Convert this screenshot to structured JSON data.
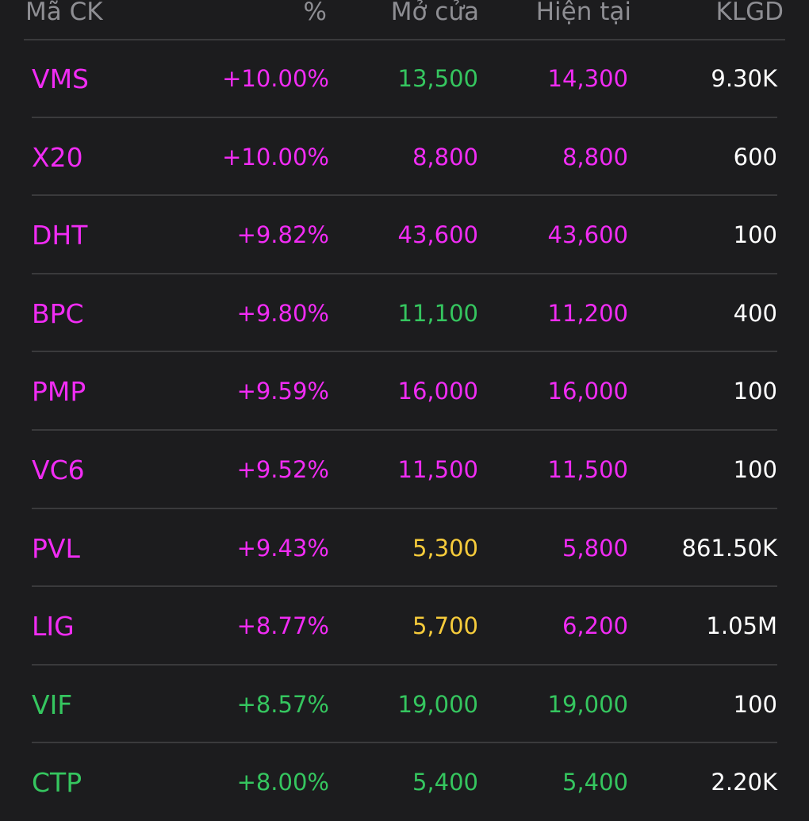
{
  "columns": {
    "symbol": "Mã CK",
    "change_pct": "%",
    "open": "Mở cửa",
    "current": "Hiện tại",
    "volume": "KLGD"
  },
  "colors": {
    "ceiling": "#f12cf4",
    "up": "#35c65f",
    "reference": "#f6cb3b",
    "neutral": "#ffffff",
    "background": "#1c1c1e",
    "header_text": "#8e8e93",
    "divider": "#3a3a3c"
  },
  "rows": [
    {
      "symbol": "VMS",
      "change_pct": "+10.00%",
      "open": "13,500",
      "current": "14,300",
      "volume": "9.30K",
      "symbol_color": "magenta",
      "pct_color": "magenta",
      "open_color": "green",
      "current_color": "magenta"
    },
    {
      "symbol": "X20",
      "change_pct": "+10.00%",
      "open": "8,800",
      "current": "8,800",
      "volume": "600",
      "symbol_color": "magenta",
      "pct_color": "magenta",
      "open_color": "magenta",
      "current_color": "magenta"
    },
    {
      "symbol": "DHT",
      "change_pct": "+9.82%",
      "open": "43,600",
      "current": "43,600",
      "volume": "100",
      "symbol_color": "magenta",
      "pct_color": "magenta",
      "open_color": "magenta",
      "current_color": "magenta"
    },
    {
      "symbol": "BPC",
      "change_pct": "+9.80%",
      "open": "11,100",
      "current": "11,200",
      "volume": "400",
      "symbol_color": "magenta",
      "pct_color": "magenta",
      "open_color": "green",
      "current_color": "magenta"
    },
    {
      "symbol": "PMP",
      "change_pct": "+9.59%",
      "open": "16,000",
      "current": "16,000",
      "volume": "100",
      "symbol_color": "magenta",
      "pct_color": "magenta",
      "open_color": "magenta",
      "current_color": "magenta"
    },
    {
      "symbol": "VC6",
      "change_pct": "+9.52%",
      "open": "11,500",
      "current": "11,500",
      "volume": "100",
      "symbol_color": "magenta",
      "pct_color": "magenta",
      "open_color": "magenta",
      "current_color": "magenta"
    },
    {
      "symbol": "PVL",
      "change_pct": "+9.43%",
      "open": "5,300",
      "current": "5,800",
      "volume": "861.50K",
      "symbol_color": "magenta",
      "pct_color": "magenta",
      "open_color": "yellow",
      "current_color": "magenta"
    },
    {
      "symbol": "LIG",
      "change_pct": "+8.77%",
      "open": "5,700",
      "current": "6,200",
      "volume": "1.05M",
      "symbol_color": "magenta",
      "pct_color": "magenta",
      "open_color": "yellow",
      "current_color": "magenta"
    },
    {
      "symbol": "VIF",
      "change_pct": "+8.57%",
      "open": "19,000",
      "current": "19,000",
      "volume": "100",
      "symbol_color": "green",
      "pct_color": "green",
      "open_color": "green",
      "current_color": "green"
    },
    {
      "symbol": "CTP",
      "change_pct": "+8.00%",
      "open": "5,400",
      "current": "5,400",
      "volume": "2.20K",
      "symbol_color": "green",
      "pct_color": "green",
      "open_color": "green",
      "current_color": "green"
    }
  ]
}
